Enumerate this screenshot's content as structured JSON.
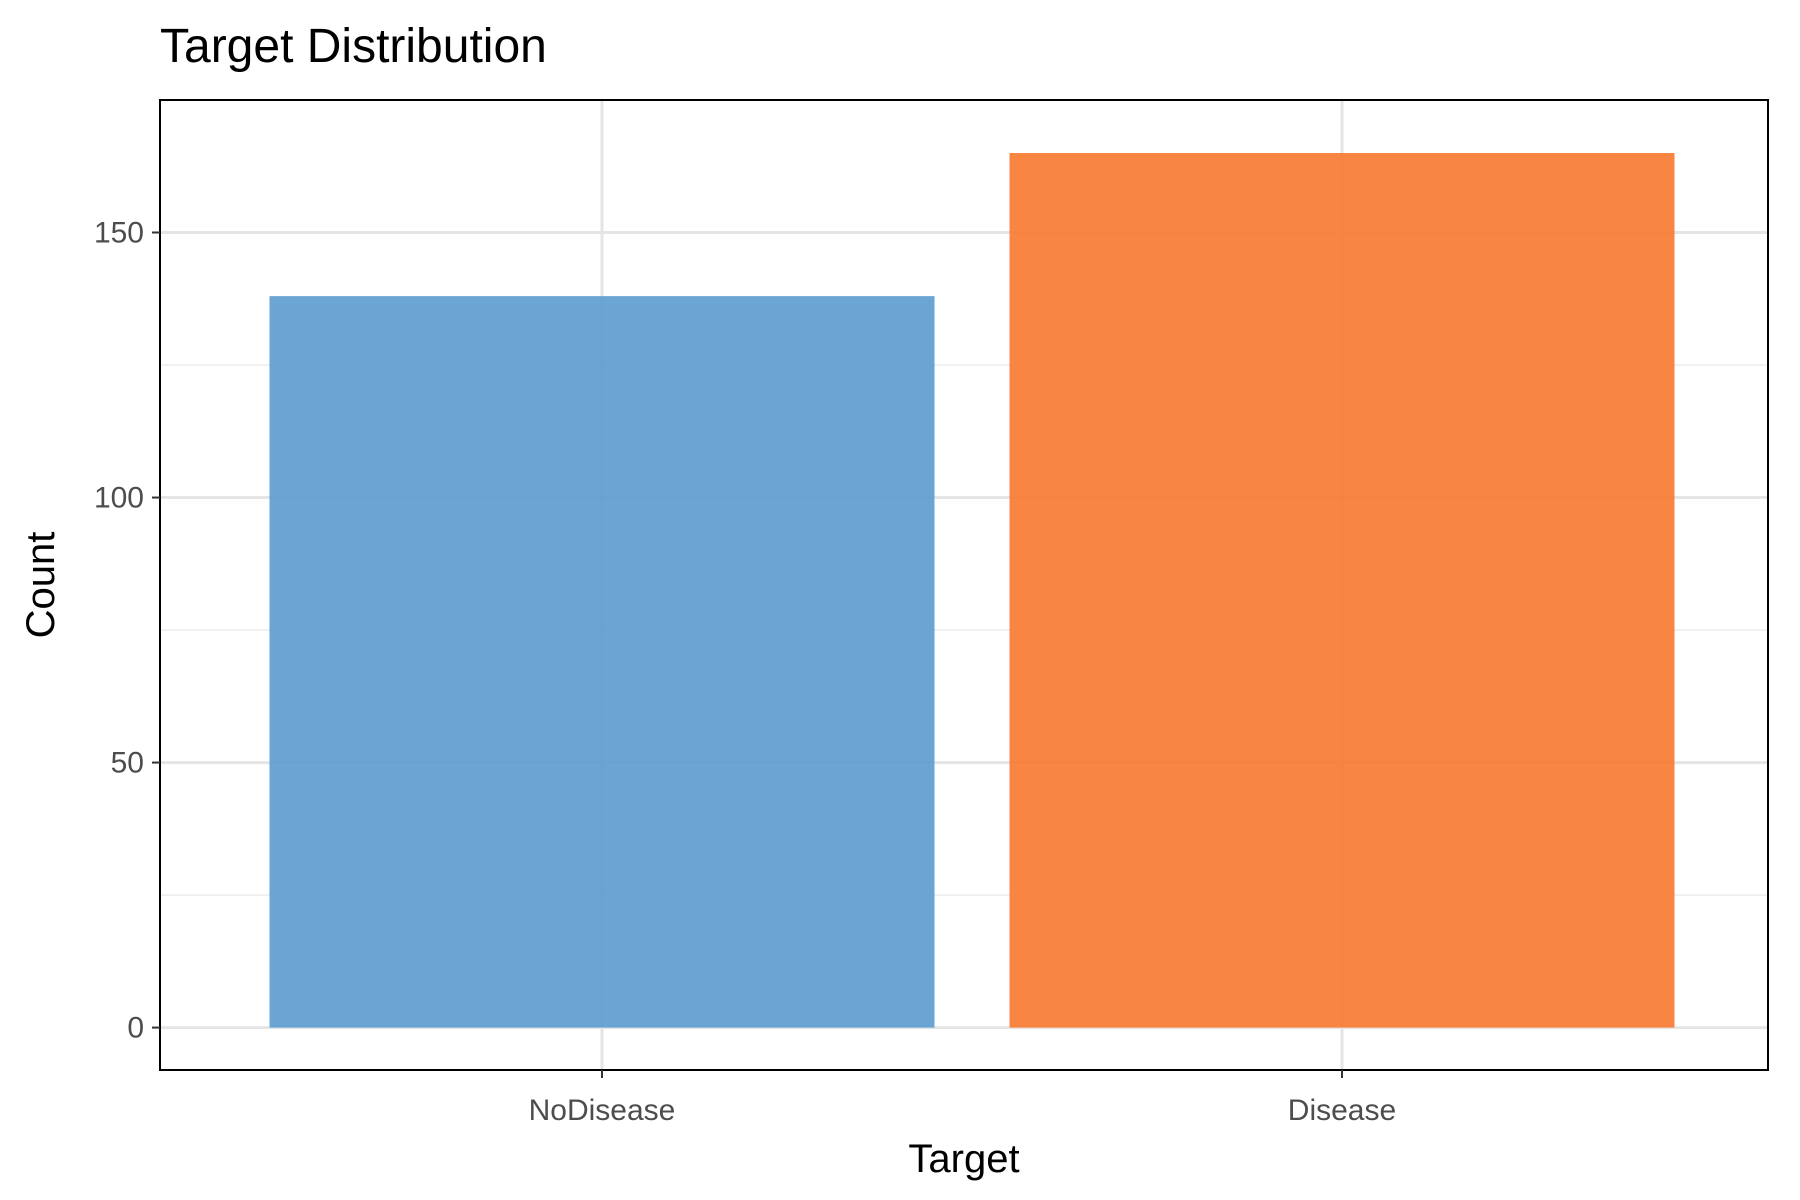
{
  "chart_data": {
    "type": "bar",
    "title": "Target Distribution",
    "xlabel": "Target",
    "ylabel": "Count",
    "categories": [
      "NoDisease",
      "Disease"
    ],
    "values": [
      138,
      165
    ],
    "colors": [
      "#5b9bcf",
      "#f8782f"
    ],
    "bar_opacity": 0.9,
    "ylim": [
      -8,
      175
    ],
    "yticks": [
      0,
      50,
      100,
      150
    ],
    "ytick_labels": [
      "0",
      "50",
      "100",
      "150"
    ],
    "yminor": [
      25,
      75,
      125
    ],
    "grid": true,
    "legend": "none"
  }
}
